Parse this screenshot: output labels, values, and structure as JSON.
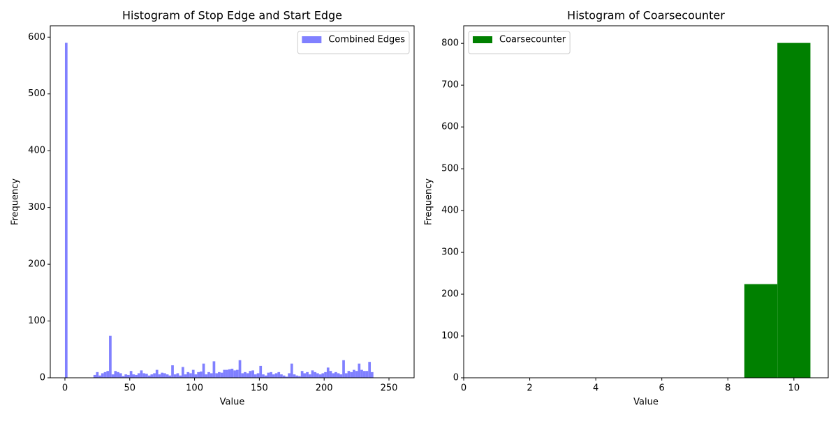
{
  "chart_data": [
    {
      "type": "histogram",
      "title": "Histogram of Stop Edge and Start Edge",
      "xlabel": "Value",
      "ylabel": "Frequency",
      "series": [
        {
          "name": "Combined Edges",
          "color": "#8080ff",
          "bins": [
            0,
            2,
            4,
            6,
            8,
            10,
            12,
            14,
            16,
            18,
            20,
            22,
            24,
            26,
            28,
            30,
            32,
            34,
            36,
            38,
            40,
            42,
            44,
            46,
            48,
            50,
            52,
            54,
            56,
            58,
            60,
            62,
            64,
            66,
            68,
            70,
            72,
            74,
            76,
            78,
            80,
            82,
            84,
            86,
            88,
            90,
            92,
            94,
            96,
            98,
            100,
            102,
            104,
            106,
            108,
            110,
            112,
            114,
            116,
            118,
            120,
            122,
            124,
            126,
            128,
            130,
            132,
            134,
            136,
            138,
            140,
            142,
            144,
            146,
            148,
            150,
            152,
            154,
            156,
            158,
            160,
            162,
            164,
            166,
            168,
            170,
            172,
            174,
            176,
            178,
            180,
            182,
            184,
            186,
            188,
            190,
            192,
            194,
            196,
            198,
            200,
            202,
            204,
            206,
            208,
            210,
            212,
            214,
            216,
            218,
            220,
            222,
            224,
            226,
            228,
            230,
            232,
            234,
            236,
            238
          ],
          "values": [
            590,
            0,
            0,
            0,
            0,
            0,
            0,
            0,
            0,
            0,
            0,
            5,
            10,
            4,
            8,
            10,
            12,
            74,
            6,
            12,
            10,
            8,
            3,
            6,
            5,
            12,
            6,
            5,
            8,
            13,
            8,
            7,
            4,
            6,
            8,
            14,
            6,
            9,
            8,
            6,
            4,
            22,
            6,
            8,
            4,
            19,
            6,
            10,
            8,
            14,
            6,
            10,
            11,
            25,
            6,
            10,
            8,
            29,
            8,
            10,
            9,
            14,
            14,
            15,
            16,
            13,
            14,
            31,
            8,
            10,
            8,
            12,
            13,
            6,
            8,
            21,
            6,
            4,
            9,
            10,
            6,
            8,
            10,
            6,
            4,
            2,
            8,
            25,
            6,
            4,
            3,
            12,
            8,
            10,
            6,
            13,
            10,
            8,
            6,
            8,
            10,
            18,
            12,
            8,
            10,
            8,
            6,
            31,
            8,
            12,
            10,
            14,
            12,
            25,
            14,
            12,
            12,
            28,
            10
          ]
        }
      ],
      "xlim": [
        -11.3,
        269.4
      ],
      "ylim": [
        0,
        620
      ],
      "xticks": [
        0,
        50,
        100,
        150,
        200,
        250
      ],
      "yticks": [
        0,
        100,
        200,
        300,
        400,
        500,
        600
      ],
      "legend": "upper right"
    },
    {
      "type": "histogram",
      "title": "Histogram of Coarsecounter",
      "xlabel": "Value",
      "ylabel": "Frequency",
      "series": [
        {
          "name": "Coarsecounter",
          "color": "#008000",
          "bins": [
            8.5,
            9.5,
            10.5
          ],
          "values": [
            224,
            801
          ]
        }
      ],
      "xlim": [
        0,
        11.04
      ],
      "ylim": [
        0,
        842
      ],
      "xticks": [
        0,
        2,
        4,
        6,
        8,
        10
      ],
      "yticks": [
        0,
        100,
        200,
        300,
        400,
        500,
        600,
        700,
        800
      ],
      "legend": "upper left"
    }
  ]
}
